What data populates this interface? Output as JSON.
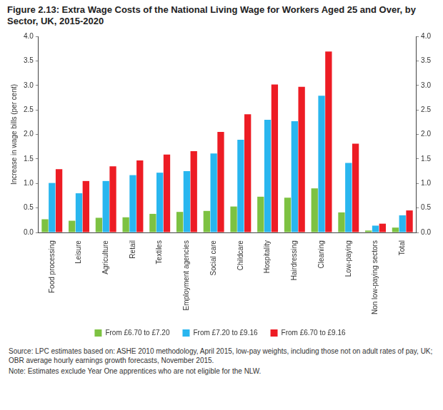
{
  "chart_data": {
    "type": "bar",
    "title": "Figure 2.13: Extra Wage Costs of the National Living Wage for Workers Aged 25 and Over, by Sector, UK, 2015-2020",
    "y_label": "Increase in wage bills (per cent)",
    "notes": [
      "Source: LPC estimates based on: ASHE 2010 methodology, April 2015, low-pay weights, including those not on adult rates of pay, UK; OBR average hourly earnings growth forecasts, November 2015.",
      "Note: Estimates exclude Year One apprentices who are not eligible for the NLW."
    ],
    "categories": [
      "Food processing",
      "Leisure",
      "Agriculture",
      "Retail",
      "Textiles",
      "Employment agencies",
      "Social care",
      "Childcare",
      "Hospitality",
      "Hairdressing",
      "Cleaning",
      "Low-paying",
      "Non low-paying sectors",
      "Total"
    ],
    "series": [
      {
        "name": "From £6.70 to £7.20",
        "color": "#7dc242",
        "values": [
          0.27,
          0.24,
          0.3,
          0.31,
          0.38,
          0.42,
          0.44,
          0.53,
          0.73,
          0.71,
          0.9,
          0.41,
          0.04,
          0.1
        ]
      },
      {
        "name": "From £7.20 to £9.16",
        "color": "#29b6ef",
        "values": [
          1.01,
          0.8,
          1.05,
          1.17,
          1.22,
          1.25,
          1.61,
          1.89,
          2.3,
          2.27,
          2.79,
          1.42,
          0.14,
          0.35
        ]
      },
      {
        "name": "From £6.70 to £9.16",
        "color": "#ed1c24",
        "values": [
          1.29,
          1.05,
          1.35,
          1.47,
          1.59,
          1.66,
          2.05,
          2.41,
          3.02,
          2.97,
          3.69,
          1.81,
          0.18,
          0.45
        ]
      }
    ],
    "ylim": [
      0,
      4
    ],
    "yticks": [
      {
        "value": 0,
        "label": "0.0"
      },
      0.5,
      {
        "value": 1,
        "label": "1.0"
      },
      1.5,
      {
        "value": 2,
        "label": "2.0"
      },
      2.5,
      {
        "value": 3,
        "label": "3.0"
      },
      3.5,
      {
        "value": 4,
        "label": "4.0"
      }
    ],
    "y2lim": [
      0,
      4
    ],
    "y2ticks": [
      {
        "value": 0,
        "label": "0.0"
      },
      0.5,
      {
        "value": 1,
        "label": "1.0"
      },
      1.5,
      {
        "value": 2,
        "label": "2.0"
      },
      2.5,
      {
        "value": 3,
        "label": "3.0"
      },
      3.5,
      {
        "value": 4,
        "label": "4.0"
      }
    ],
    "grid": false,
    "legend": "bottom"
  }
}
